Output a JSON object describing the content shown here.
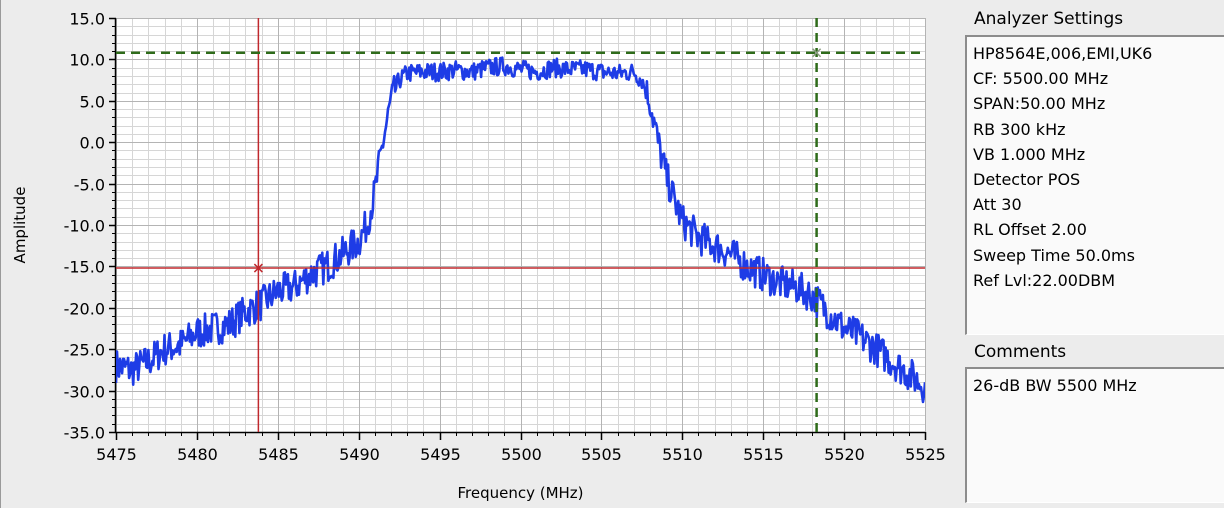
{
  "chart_data": {
    "type": "line",
    "xlabel": "Frequency (MHz)",
    "ylabel": "Amplitude",
    "xlim": [
      5475,
      5525
    ],
    "ylim": [
      -35,
      15
    ],
    "x_ticks": [
      "5475",
      "5480",
      "5485",
      "5490",
      "5495",
      "5500",
      "5505",
      "5510",
      "5515",
      "5520",
      "5525"
    ],
    "y_ticks": [
      "15.0",
      "10.0",
      "5.0",
      "0.0",
      "-5.0",
      "-10.0",
      "-15.0",
      "-20.0",
      "-25.0",
      "-30.0",
      "-35.0"
    ],
    "grid": true,
    "series": [
      {
        "color": "#1e3ce6",
        "x": [
          5475,
          5476,
          5477,
          5478,
          5479,
          5480,
          5481,
          5482,
          5483,
          5484,
          5485,
          5486,
          5487,
          5488,
          5489,
          5490,
          5490.5,
          5491,
          5491.5,
          5492,
          5492.5,
          5493,
          5494,
          5495,
          5496,
          5497,
          5498,
          5499,
          5500,
          5501,
          5502,
          5503,
          5504,
          5505,
          5506,
          5507,
          5507.5,
          5508,
          5508.5,
          5509,
          5509.5,
          5510,
          5511,
          5512,
          5513,
          5514,
          5515,
          5516,
          5517,
          5518,
          5519,
          5520,
          5521,
          5522,
          5523,
          5524,
          5525
        ],
        "y": [
          -27,
          -27.5,
          -26.5,
          -25,
          -24.5,
          -23,
          -22.5,
          -22,
          -20.5,
          -19.5,
          -18,
          -17.5,
          -16,
          -15,
          -13.5,
          -12,
          -10,
          -6,
          0,
          5,
          7.5,
          8.3,
          8.5,
          8.5,
          8.7,
          8.5,
          9.0,
          9.2,
          8.8,
          8.5,
          9.0,
          8.8,
          8.8,
          8.5,
          8.3,
          8.5,
          7.5,
          5,
          0,
          -4,
          -7,
          -9.5,
          -11.5,
          -12.5,
          -13.5,
          -15,
          -16,
          -17,
          -17.5,
          -18.5,
          -20.5,
          -22.5,
          -23.5,
          -25,
          -26.5,
          -28,
          -29.5
        ],
        "noise": 1.3
      }
    ],
    "cursors": [
      {
        "color": "#c0282d",
        "x": 5483.8,
        "y": -15.2,
        "style": "solid"
      },
      {
        "color": "#2e6b1a",
        "x": 5518.3,
        "y": 10.8,
        "style": "dashed"
      }
    ]
  },
  "panel": {
    "settings_title": "Analyzer Settings",
    "settings_lines": [
      "HP8564E,006,EMI,UK6",
      "CF: 5500.00 MHz",
      "SPAN:50.00 MHz",
      "RB 300 kHz",
      "VB 1.000 MHz",
      "Detector POS",
      "Att 30",
      "RL Offset 2.00",
      "Sweep Time 50.0ms",
      "Ref Lvl:22.00DBM"
    ],
    "comments_title": "Comments",
    "comments_text": "26-dB BW 5500 MHz"
  }
}
